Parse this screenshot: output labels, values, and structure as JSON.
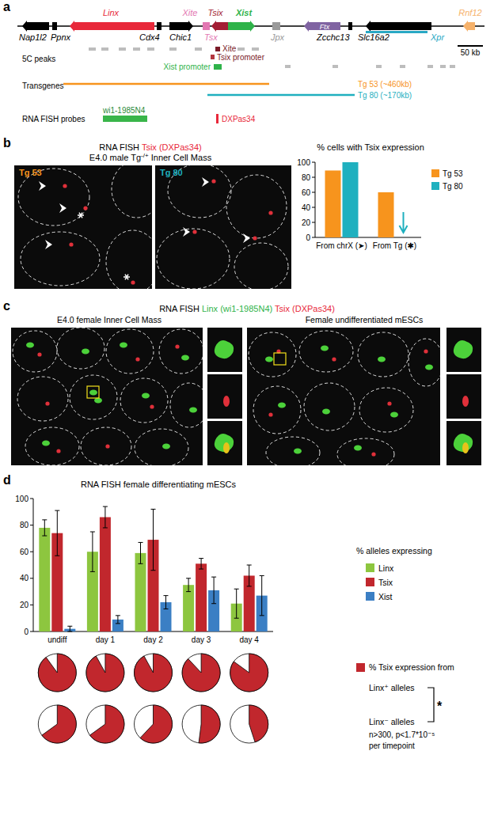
{
  "figure": {
    "panel_labels": [
      "a",
      "b",
      "c",
      "d"
    ],
    "panel_a": {
      "genes": [
        {
          "name": "Nap1l2",
          "color": "#000000"
        },
        {
          "name": "Ppnx",
          "color": "#000000"
        },
        {
          "name": "Linx",
          "color": "#e8283a"
        },
        {
          "name": "Cdx4",
          "color": "#000000"
        },
        {
          "name": "Chic1",
          "color": "#000000"
        },
        {
          "name": "Xite",
          "color": "#e377b2"
        },
        {
          "name": "Tsix",
          "color": "#a31f34"
        },
        {
          "name": "Tsx",
          "color": "#e377b2"
        },
        {
          "name": "Xist",
          "color": "#2fb34a"
        },
        {
          "name": "Jpx",
          "color": "#9a9a9a"
        },
        {
          "name": "Ftx",
          "color": "#8064a2"
        },
        {
          "name": "Zcchc13",
          "color": "#000000"
        },
        {
          "name": "Slc16a2",
          "color": "#000000"
        },
        {
          "name": "Xpr",
          "color": "#29a8c4"
        },
        {
          "name": "Rnf12",
          "color": "#f6b26b"
        }
      ],
      "scale_bar": "50 kb",
      "tracks": [
        "5C peaks",
        "Transgenes",
        "RNA FISH probes"
      ],
      "peaks": [
        "Xite",
        "Tsix promoter",
        "Xist promoter"
      ],
      "transgenes": [
        "Tg 53 (~460kb)",
        "Tg 80 (~170kb)"
      ],
      "probes": [
        "wi1-1985N4",
        "DXPas34"
      ]
    },
    "panel_b": {
      "title": "RNA FISH",
      "probe": "Tsix (DXPas34)",
      "subtitle": [
        "E4.0 male Tg",
        "-/+",
        "Inner Cell Mass"
      ],
      "images": [
        "Tg 53",
        "Tg 80"
      ]
    },
    "panel_c": {
      "title": "RNA FISH",
      "probe_green": "Linx (wi1-1985N4)",
      "probe_red": "Tsix (DXPas34)",
      "images": [
        "E4.0 female Inner Cell Mass",
        "Female undifferentiated mESCs"
      ]
    }
  },
  "chart_data": [
    {
      "type": "bar",
      "title": "% cells with Tsix expression",
      "categories": [
        "From chrX (➤)",
        "From Tg (✱)"
      ],
      "series": [
        {
          "name": "Tg 53",
          "color": "#f7941d",
          "values": [
            89,
            60
          ]
        },
        {
          "name": "Tg 80",
          "color": "#1fb0bf",
          "values": [
            100,
            0
          ]
        }
      ],
      "ylim": [
        0,
        100
      ],
      "yticks": [
        0,
        20,
        40,
        60,
        80,
        100
      ],
      "grid": false,
      "legend": "right"
    },
    {
      "type": "bar",
      "title": "RNA FISH female differentiating mESCs",
      "annotations": [
        "% alleles expressing"
      ],
      "categories": [
        "undiff",
        "day 1",
        "day 2",
        "day 3",
        "day 4"
      ],
      "series": [
        {
          "name": "Linx",
          "color": "#8dc63f",
          "values": [
            78,
            60,
            59,
            35,
            21
          ],
          "errors": [
            6,
            15,
            8,
            5,
            11
          ]
        },
        {
          "name": "Tsix",
          "color": "#c1272d",
          "values": [
            74,
            86,
            69,
            51,
            42
          ],
          "errors": [
            17,
            8,
            23,
            4,
            8
          ]
        },
        {
          "name": "Xist",
          "color": "#3b7fc4",
          "values": [
            2,
            9,
            22,
            31,
            27
          ],
          "errors": [
            2,
            3,
            5,
            10,
            15
          ]
        }
      ],
      "ylim": [
        0,
        100
      ],
      "yticks": [
        0,
        20,
        40,
        60,
        80,
        100
      ],
      "grid": false,
      "legend": "right"
    },
    {
      "type": "pie",
      "title": "% Tsix expression from",
      "color": "#c1272d",
      "series": [
        {
          "name": "Linx⁺ alleles",
          "values": [
            90,
            92,
            92,
            88,
            85
          ]
        },
        {
          "name": "Linx⁻ alleles",
          "values": [
            65,
            65,
            62,
            52,
            45
          ]
        }
      ],
      "annotations": [
        "*",
        "n>300, p<1.7*10⁻⁵",
        "per timepoint"
      ]
    }
  ]
}
